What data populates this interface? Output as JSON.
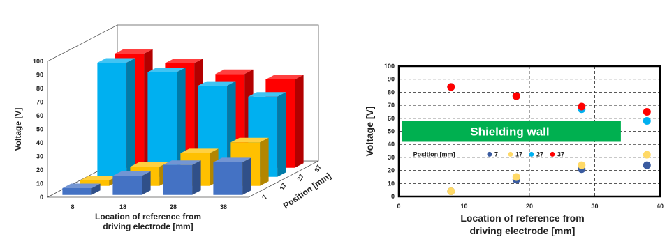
{
  "chart_data": [
    {
      "type": "bar3d",
      "ylabel": "Voltage [V]",
      "xlabel_line1": "Location of reference from",
      "xlabel_line2": "driving electrode [mm]",
      "zlabel": "Position [mm]",
      "ylim": [
        0,
        100
      ],
      "yticks": [
        0,
        10,
        20,
        30,
        40,
        50,
        60,
        70,
        80,
        90,
        100
      ],
      "categories": [
        "8",
        "18",
        "28",
        "38"
      ],
      "positions": [
        "7",
        "17",
        "27",
        "37"
      ],
      "series": [
        {
          "position": "7",
          "color": "#4472c4",
          "values": [
            5,
            14,
            22,
            24
          ]
        },
        {
          "position": "17",
          "color": "#ffc000",
          "values": [
            4,
            14,
            24,
            32
          ]
        },
        {
          "position": "27",
          "color": "#00b0f0",
          "values": [
            84,
            77,
            67,
            59
          ]
        },
        {
          "position": "37",
          "color": "#ff0000",
          "values": [
            84,
            77,
            69,
            65
          ]
        }
      ]
    },
    {
      "type": "scatter",
      "ylabel": "Voltage [V]",
      "xlabel_line1": "Location of reference from",
      "xlabel_line2": "driving electrode [mm]",
      "xlim": [
        0,
        40
      ],
      "ylim": [
        0,
        100
      ],
      "xticks": [
        0,
        10,
        20,
        30,
        40
      ],
      "yticks": [
        0,
        10,
        20,
        30,
        40,
        50,
        60,
        70,
        80,
        90,
        100
      ],
      "grid": true,
      "band": {
        "label": "Shielding wall",
        "y_range": [
          42,
          58
        ],
        "x_range": [
          0,
          34
        ],
        "color": "#00b050"
      },
      "legend": {
        "title": "Position [mm]",
        "placement": "middle-left"
      },
      "series": [
        {
          "name": "7",
          "color": "#3a5ba0",
          "x": [
            8,
            18,
            28,
            38
          ],
          "y": [
            4,
            13,
            21,
            24
          ]
        },
        {
          "name": "17",
          "color": "#ffd966",
          "x": [
            8,
            18,
            28,
            38
          ],
          "y": [
            4,
            15,
            24,
            32
          ]
        },
        {
          "name": "27",
          "color": "#00b0f0",
          "x": [
            8,
            18,
            28,
            38
          ],
          "y": [
            84,
            77,
            67,
            58
          ]
        },
        {
          "name": "37",
          "color": "#ff0000",
          "x": [
            8,
            18,
            28,
            38
          ],
          "y": [
            84,
            77,
            69,
            65
          ]
        }
      ]
    }
  ]
}
